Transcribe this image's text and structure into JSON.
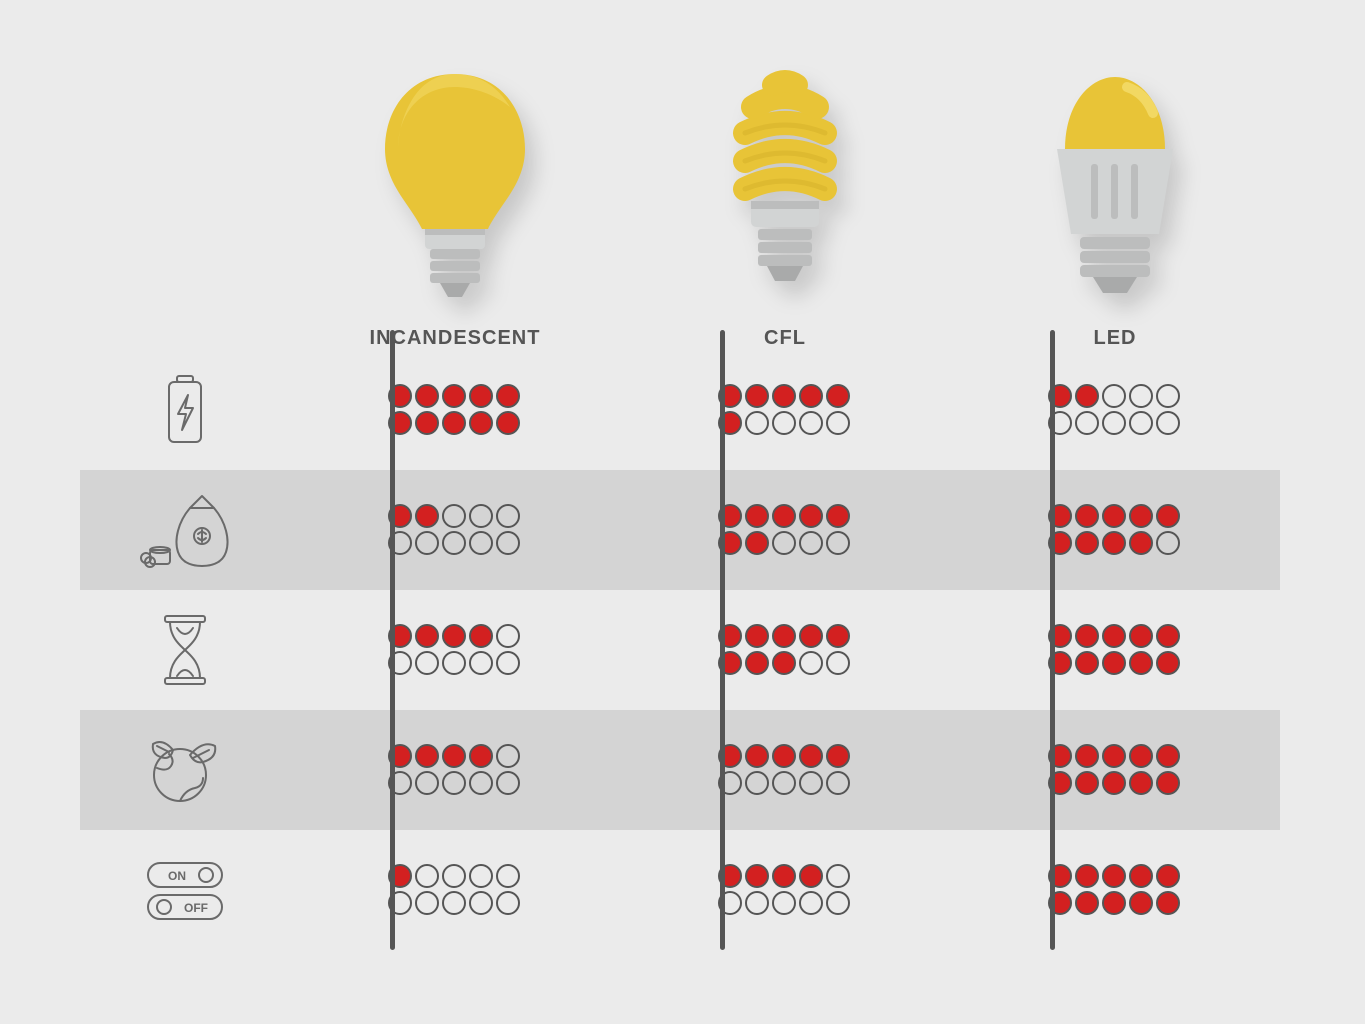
{
  "type": "infographic-comparison-table",
  "background_color": "#ebebeb",
  "stripe_color": "#d4d4d4",
  "divider_color": "#555555",
  "label_color": "#555555",
  "dot_filled_color": "#d32020",
  "dot_border_color": "#555555",
  "dot_max": 10,
  "bulb_colors": {
    "yellow": "#e8c437",
    "yellow_light": "#f2d862",
    "grey_light": "#d2d4d4",
    "grey_mid": "#bcbdbd",
    "grey_dark": "#a9aaaa"
  },
  "columns": [
    {
      "id": "incandescent",
      "label": "INCANDESCENT"
    },
    {
      "id": "cfl",
      "label": "CFL"
    },
    {
      "id": "led",
      "label": "LED"
    }
  ],
  "rows": [
    {
      "id": "energy",
      "icon": "battery-bolt",
      "stripe": false,
      "values": {
        "incandescent": 10,
        "cfl": 6,
        "led": 2
      }
    },
    {
      "id": "cost",
      "icon": "money-bag",
      "stripe": true,
      "values": {
        "incandescent": 2,
        "cfl": 7,
        "led": 9
      }
    },
    {
      "id": "lifespan",
      "icon": "hourglass",
      "stripe": false,
      "values": {
        "incandescent": 4,
        "cfl": 8,
        "led": 10
      }
    },
    {
      "id": "eco",
      "icon": "earth-leaf",
      "stripe": true,
      "values": {
        "incandescent": 4,
        "cfl": 5,
        "led": 10
      }
    },
    {
      "id": "switching",
      "icon": "on-off-toggle",
      "stripe": false,
      "values": {
        "incandescent": 1,
        "cfl": 4,
        "led": 10
      }
    }
  ],
  "label_fontsize": 20,
  "icon_stroke": "#6a6a6a",
  "icon_stroke_width": 2
}
